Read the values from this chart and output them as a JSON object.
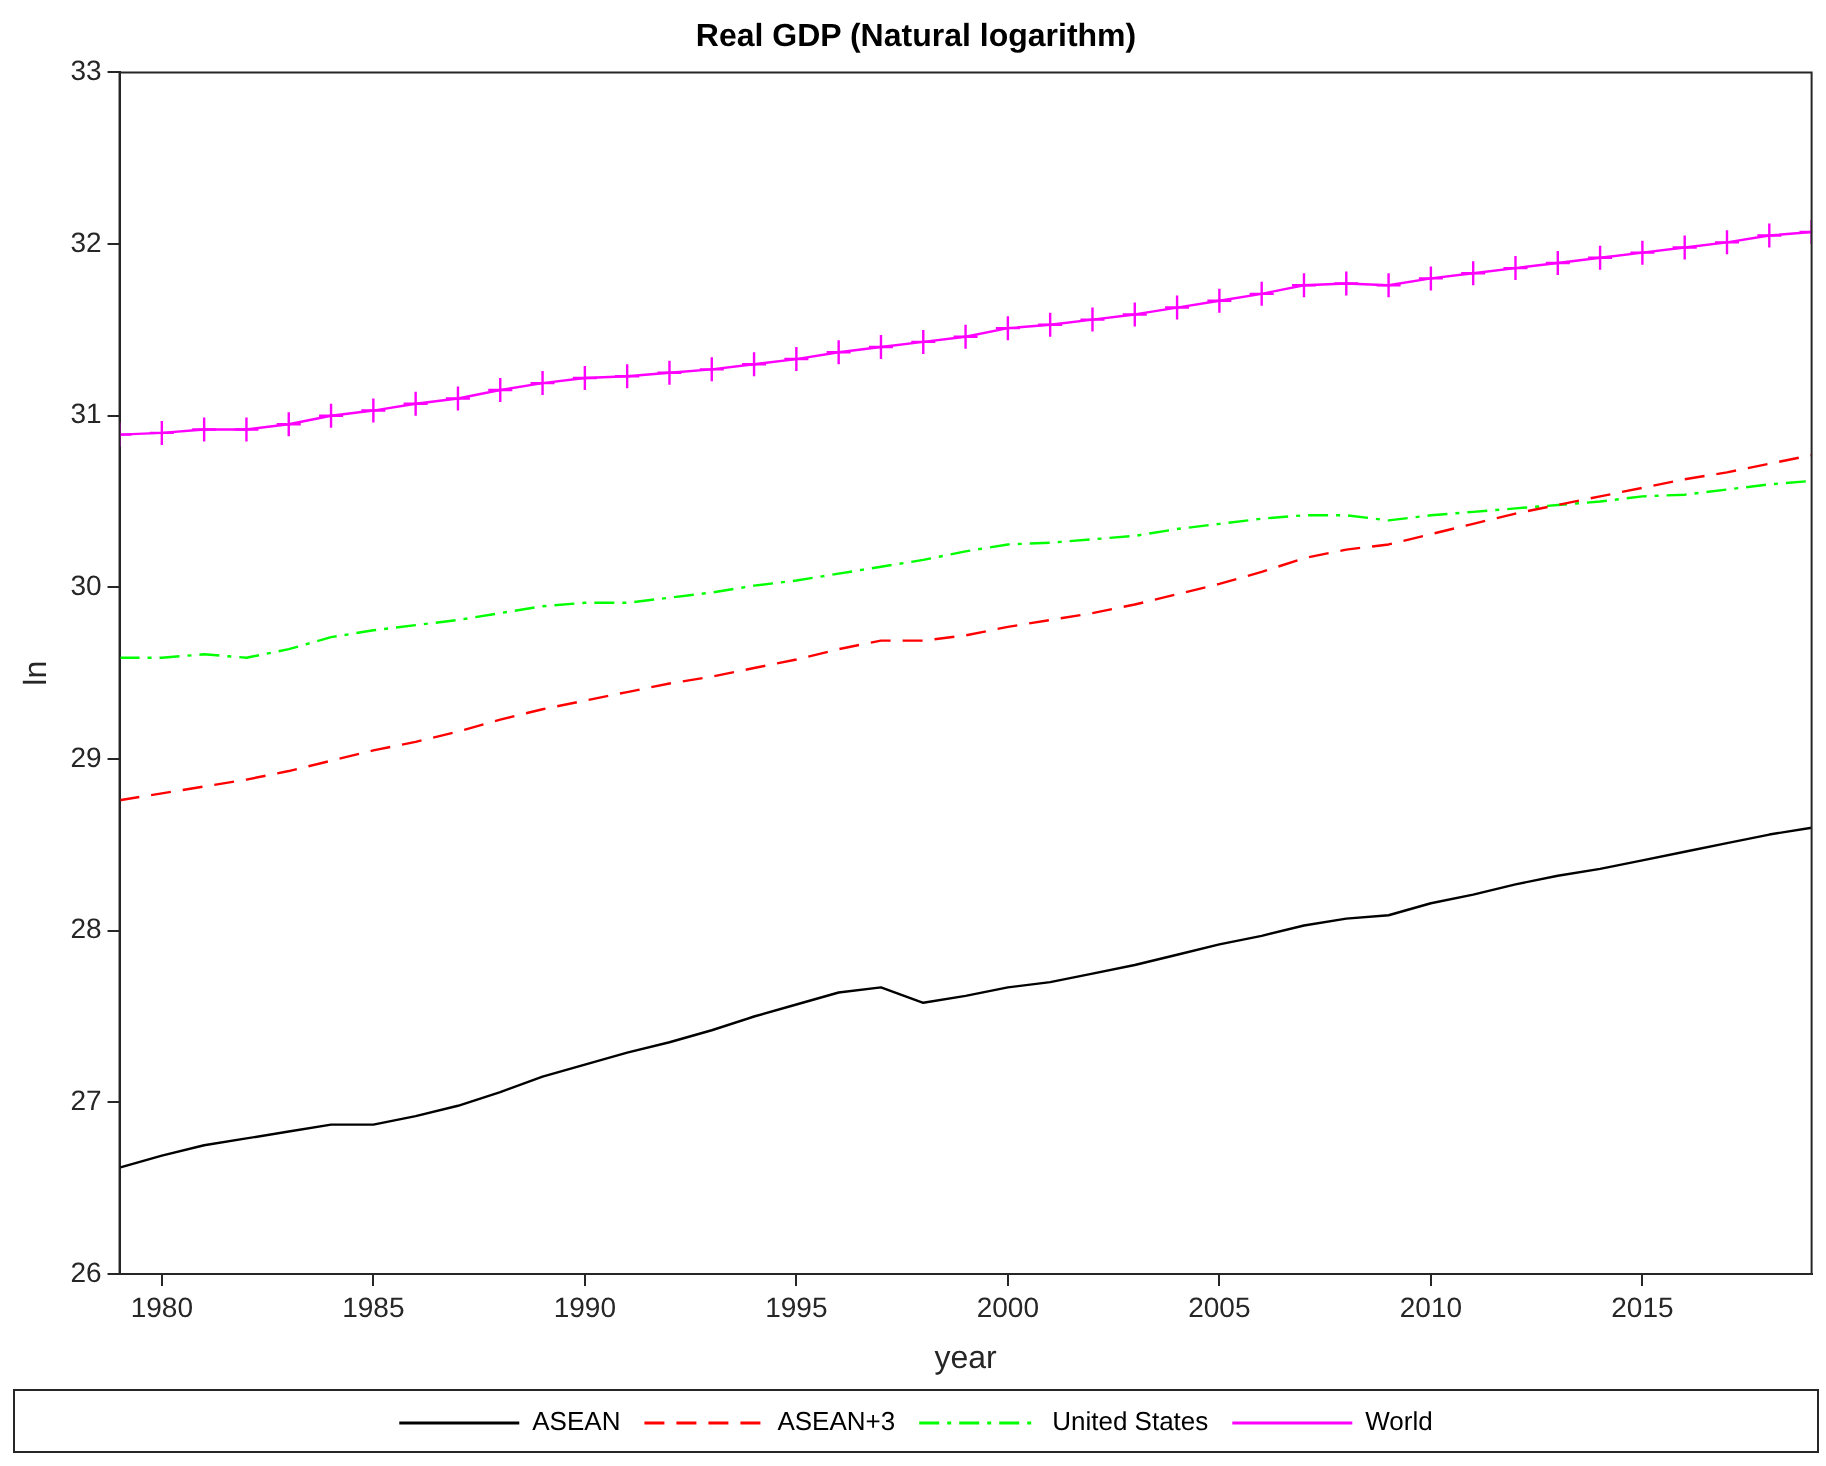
{
  "chart_data": {
    "type": "line",
    "title": "Real GDP (Natural logarithm)",
    "xlabel": "year",
    "ylabel": "ln",
    "x": [
      1979,
      1980,
      1981,
      1982,
      1983,
      1984,
      1985,
      1986,
      1987,
      1988,
      1989,
      1990,
      1991,
      1992,
      1993,
      1994,
      1995,
      1996,
      1997,
      1998,
      1999,
      2000,
      2001,
      2002,
      2003,
      2004,
      2005,
      2006,
      2007,
      2008,
      2009,
      2010,
      2011,
      2012,
      2013,
      2014,
      2015,
      2016,
      2017,
      2018,
      2019
    ],
    "series": [
      {
        "name": "ASEAN",
        "color": "#000000",
        "line_style": "solid",
        "marker": "none",
        "values": [
          26.62,
          26.69,
          26.75,
          26.79,
          26.83,
          26.87,
          26.87,
          26.92,
          26.98,
          27.06,
          27.15,
          27.22,
          27.29,
          27.35,
          27.42,
          27.5,
          27.57,
          27.64,
          27.67,
          27.58,
          27.62,
          27.67,
          27.7,
          27.75,
          27.8,
          27.86,
          27.92,
          27.97,
          28.03,
          28.07,
          28.09,
          28.16,
          28.21,
          28.27,
          28.32,
          28.36,
          28.41,
          28.46,
          28.51,
          28.56,
          28.6
        ]
      },
      {
        "name": "ASEAN+3",
        "color": "#ff0000",
        "line_style": "dashed",
        "marker": "none",
        "values": [
          28.76,
          28.8,
          28.84,
          28.88,
          28.93,
          28.99,
          29.05,
          29.1,
          29.16,
          29.23,
          29.29,
          29.34,
          29.39,
          29.44,
          29.48,
          29.53,
          29.58,
          29.64,
          29.69,
          29.69,
          29.72,
          29.77,
          29.81,
          29.85,
          29.9,
          29.96,
          30.02,
          30.09,
          30.17,
          30.22,
          30.25,
          30.31,
          30.37,
          30.43,
          30.48,
          30.53,
          30.58,
          30.63,
          30.67,
          30.72,
          30.77
        ]
      },
      {
        "name": "United States",
        "color": "#00ff00",
        "line_style": "dashdot",
        "marker": "none",
        "values": [
          29.59,
          29.59,
          29.61,
          29.59,
          29.64,
          29.71,
          29.75,
          29.78,
          29.81,
          29.85,
          29.89,
          29.91,
          29.91,
          29.94,
          29.97,
          30.01,
          30.04,
          30.08,
          30.12,
          30.16,
          30.21,
          30.25,
          30.26,
          30.28,
          30.3,
          30.34,
          30.37,
          30.4,
          30.42,
          30.42,
          30.39,
          30.42,
          30.44,
          30.46,
          30.48,
          30.5,
          30.53,
          30.54,
          30.57,
          30.6,
          30.62
        ]
      },
      {
        "name": "World",
        "color": "#ff00ff",
        "line_style": "solid",
        "marker": "cross",
        "values": [
          30.89,
          30.9,
          30.92,
          30.92,
          30.95,
          31.0,
          31.03,
          31.07,
          31.1,
          31.15,
          31.19,
          31.22,
          31.23,
          31.25,
          31.27,
          31.3,
          31.33,
          31.37,
          31.4,
          31.43,
          31.46,
          31.51,
          31.53,
          31.56,
          31.59,
          31.63,
          31.67,
          31.71,
          31.76,
          31.77,
          31.76,
          31.8,
          31.83,
          31.86,
          31.89,
          31.92,
          31.95,
          31.98,
          32.01,
          32.05,
          32.07
        ]
      }
    ],
    "xlim": [
      1979,
      2019
    ],
    "xticks": [
      1980,
      1985,
      1990,
      1995,
      2000,
      2005,
      2010,
      2015
    ],
    "ylim": [
      26,
      33
    ],
    "yticks": [
      26,
      27,
      28,
      29,
      30,
      31,
      32,
      33
    ],
    "grid": false,
    "legend": "bottom"
  }
}
